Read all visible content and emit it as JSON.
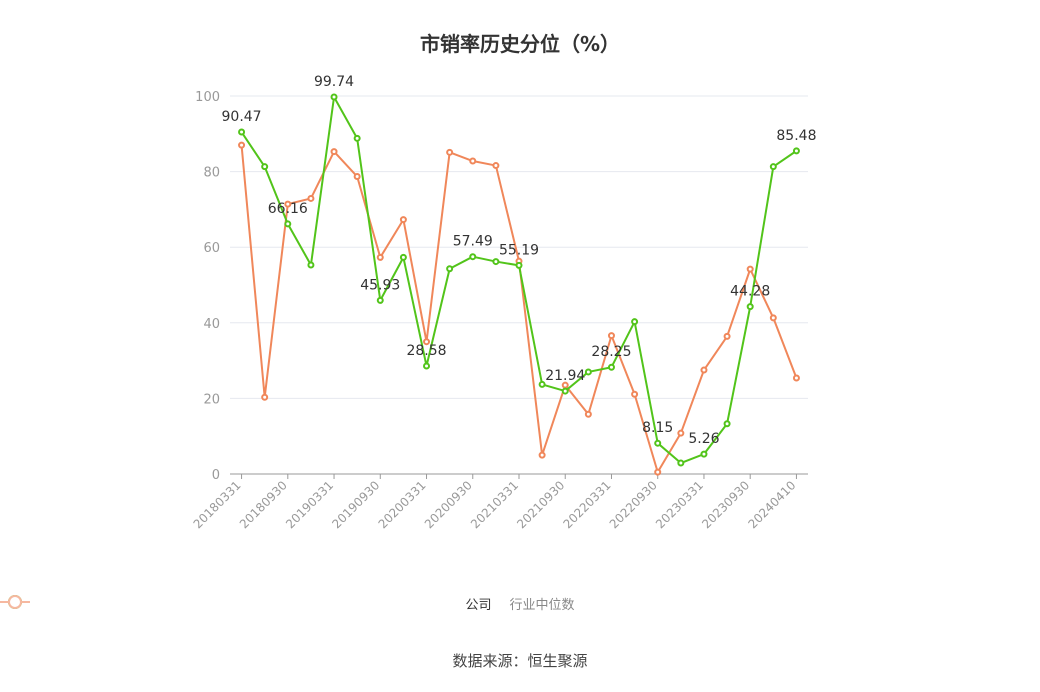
{
  "title": "市销率历史分位（%）",
  "source": "数据来源：恒生聚源",
  "colors": {
    "company": "#52c41a",
    "industry": "#f0875a",
    "grid": "#e6e8ef",
    "axis": "#999999"
  },
  "legend": {
    "company": "公司",
    "industry": "行业中位数"
  },
  "chart_data": {
    "type": "line",
    "title": "市销率历史分位（%）",
    "ylim": [
      0,
      100
    ],
    "yticks": [
      0,
      20,
      40,
      60,
      80,
      100
    ],
    "x": [
      "20180331",
      "20180630",
      "20180930",
      "20181231",
      "20190331",
      "20190630",
      "20190930",
      "20191231",
      "20200331",
      "20200630",
      "20200930",
      "20201231",
      "20210331",
      "20210630",
      "20210930",
      "20211231",
      "20220331",
      "20220630",
      "20220930",
      "20221231",
      "20230331",
      "20230630",
      "20230930",
      "20231231",
      "20240410"
    ],
    "xticklabels": [
      "20180331",
      "20180930",
      "20190331",
      "20190930",
      "20200331",
      "20200930",
      "20210331",
      "20210930",
      "20220331",
      "20220930",
      "20230331",
      "20230930",
      "20240410"
    ],
    "series": [
      {
        "name": "公司",
        "values": [
          90.47,
          81.3,
          66.16,
          55.3,
          99.74,
          88.8,
          45.93,
          57.3,
          28.58,
          54.3,
          57.49,
          56.2,
          55.19,
          23.7,
          21.94,
          27.0,
          28.25,
          40.3,
          8.15,
          2.9,
          5.26,
          13.3,
          44.28,
          81.3,
          85.48
        ],
        "labeled": [
          0,
          2,
          4,
          6,
          8,
          10,
          12,
          14,
          16,
          18,
          20,
          22,
          24
        ]
      },
      {
        "name": "行业中位数",
        "values": [
          87.0,
          20.3,
          71.4,
          72.9,
          85.3,
          78.7,
          57.3,
          67.3,
          35.0,
          85.1,
          82.8,
          81.6,
          56.3,
          5.0,
          23.5,
          15.8,
          36.6,
          21.1,
          0.5,
          10.8,
          27.5,
          36.4,
          54.2,
          41.3,
          25.4
        ]
      }
    ],
    "grid": true,
    "legend_position": "bottom"
  }
}
